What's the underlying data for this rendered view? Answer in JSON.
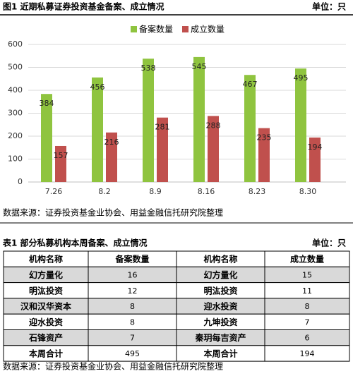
{
  "figure": {
    "title": "图1  近期私募证券投资基金备案、成立情况",
    "unit": "单位：只",
    "source": "数据来源：证券投资基金业协会、用益金融信托研究院整理"
  },
  "chart_data": {
    "type": "bar",
    "categories": [
      "7.26",
      "8.2",
      "8.9",
      "8.16",
      "8.23",
      "8.30"
    ],
    "series": [
      {
        "name": "备案数量",
        "color": "#8fc43f",
        "values": [
          384,
          456,
          538,
          545,
          467,
          495
        ]
      },
      {
        "name": "成立数量",
        "color": "#c0504d",
        "values": [
          157,
          216,
          281,
          288,
          235,
          194
        ]
      }
    ],
    "ylim": [
      0,
      600
    ],
    "yticks": [
      0,
      100,
      200,
      300,
      400,
      500,
      600
    ],
    "grid": true,
    "legend": "top"
  },
  "table": {
    "title": "表1  部分私募机构本周备案、成立情况",
    "unit": "单位：只",
    "header": [
      "机构名称",
      "备案数量",
      "机构名称",
      "成立数量"
    ],
    "rows": [
      [
        "幻方量化",
        16,
        "幻方量化",
        15
      ],
      [
        "明汯投资",
        12,
        "明汯投资",
        11
      ],
      [
        "汉和汉华资本",
        8,
        "迎水投资",
        8
      ],
      [
        "迎水投资",
        8,
        "九坤投资",
        7
      ],
      [
        "石锋资产",
        7,
        "秦玥每吉资产",
        6
      ],
      [
        "本周合计",
        495,
        "本周合计",
        194
      ]
    ],
    "source": "数据来源：证券投资基金业协会、用益金融信托研究院整理"
  }
}
